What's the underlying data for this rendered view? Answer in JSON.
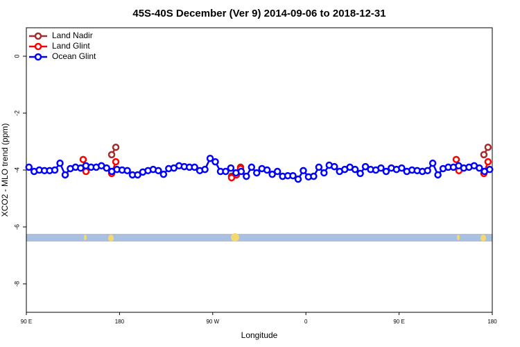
{
  "chart_data": {
    "type": "line",
    "title": "45S-40S December (Ver 9)   2014-09-06 to 2018-12-31",
    "xlabel": "Longitude",
    "ylabel": "XCO2 - MLO trend (ppm)",
    "xlim": [
      90,
      540
    ],
    "ylim": [
      -9,
      1
    ],
    "xticks": [
      {
        "value": 90,
        "label": "90 E"
      },
      180,
      {
        "value": 270,
        "label": "90 W"
      },
      {
        "value": 360,
        "label": "0"
      },
      {
        "value": 450,
        "label": "90 E"
      },
      {
        "value": 540,
        "label": "180"
      }
    ],
    "yticks": [
      0,
      -2,
      -4,
      -6,
      -8
    ],
    "legend": "top-left",
    "series": [
      {
        "name": "Land Nadir",
        "color": "#a52a2a",
        "x": [
          172.4,
          176.4,
          230,
          288.2,
          296.9,
          400,
          531.9,
          535.9
        ],
        "values": [
          -3.46,
          -3.2,
          null,
          -4.22,
          -3.9,
          null,
          -3.46,
          -3.2
        ]
      },
      {
        "name": "Land Glint",
        "color": "#ff0000",
        "x": [
          144.9,
          147.6,
          160,
          172.4,
          176.4,
          230,
          288.2,
          292.9,
          296.9,
          400,
          505.2,
          507.8,
          520,
          531.9,
          535.9
        ],
        "values": [
          -3.63,
          -4.05,
          null,
          -4.12,
          -3.71,
          null,
          -4.27,
          -4.17,
          -3.95,
          null,
          -3.63,
          -4.02,
          null,
          -4.12,
          -3.71
        ]
      },
      {
        "name": "Ocean Glint",
        "color": "#0000ff",
        "x": [
          92.5,
          97.5,
          102.5,
          107.5,
          112.5,
          117.5,
          122.5,
          127.5,
          132.5,
          137.5,
          142.5,
          147.5,
          152.5,
          157.5,
          162.5,
          167.5,
          172.5,
          177.5,
          182.5,
          187.5,
          192.5,
          197.5,
          202.5,
          207.5,
          212.5,
          217.5,
          222.5,
          227.5,
          232.5,
          237.5,
          242.5,
          247.5,
          252.5,
          257.5,
          262.5,
          267.5,
          272.5,
          277.5,
          282.5,
          287.5,
          292.5,
          297.5,
          302.5,
          307.5,
          312.5,
          317.5,
          322.5,
          327.5,
          332.5,
          337.5,
          342.5,
          347.5,
          352.5,
          357.5,
          362.5,
          367.5,
          372.5,
          377.5,
          382.5,
          387.5,
          392.5,
          397.5,
          402.5,
          407.5,
          412.5,
          417.5,
          422.5,
          427.5,
          432.5,
          437.5,
          442.5,
          447.5,
          452.5,
          457.5,
          462.5,
          467.5,
          472.5,
          477.5,
          482.5,
          487.5,
          492.5,
          497.5,
          502.5,
          507.5,
          512.5,
          517.5,
          522.5,
          527.5,
          532.5,
          537.5
        ],
        "values": [
          -3.9,
          -4.05,
          -4.0,
          -4.02,
          -4.02,
          -4.0,
          -3.76,
          -4.17,
          -3.95,
          -3.9,
          -3.93,
          -3.85,
          -3.9,
          -3.9,
          -3.85,
          -3.93,
          -4.05,
          -3.98,
          -4.0,
          -4.02,
          -4.17,
          -4.17,
          -4.07,
          -4.02,
          -3.98,
          -4.02,
          -4.15,
          -3.95,
          -3.93,
          -3.85,
          -3.88,
          -3.9,
          -3.9,
          -4.02,
          -3.98,
          -3.59,
          -3.71,
          -4.05,
          -4.05,
          -3.93,
          -4.1,
          -4.05,
          -4.22,
          -3.9,
          -4.1,
          -3.95,
          -4.0,
          -4.15,
          -4.05,
          -4.22,
          -4.2,
          -4.2,
          -4.32,
          -4.02,
          -4.24,
          -4.22,
          -3.9,
          -4.1,
          -3.83,
          -3.88,
          -4.05,
          -3.98,
          -3.9,
          -3.98,
          -4.12,
          -3.88,
          -3.98,
          -4.0,
          -3.93,
          -4.05,
          -3.93,
          -3.98,
          -3.93,
          -4.05,
          -4.0,
          -4.02,
          -4.05,
          -4.02,
          -3.76,
          -4.17,
          -3.95,
          -3.9,
          -3.9,
          -3.85,
          -3.93,
          -3.9,
          -3.85,
          -3.93,
          -4.05,
          -3.98
        ]
      }
    ]
  }
}
